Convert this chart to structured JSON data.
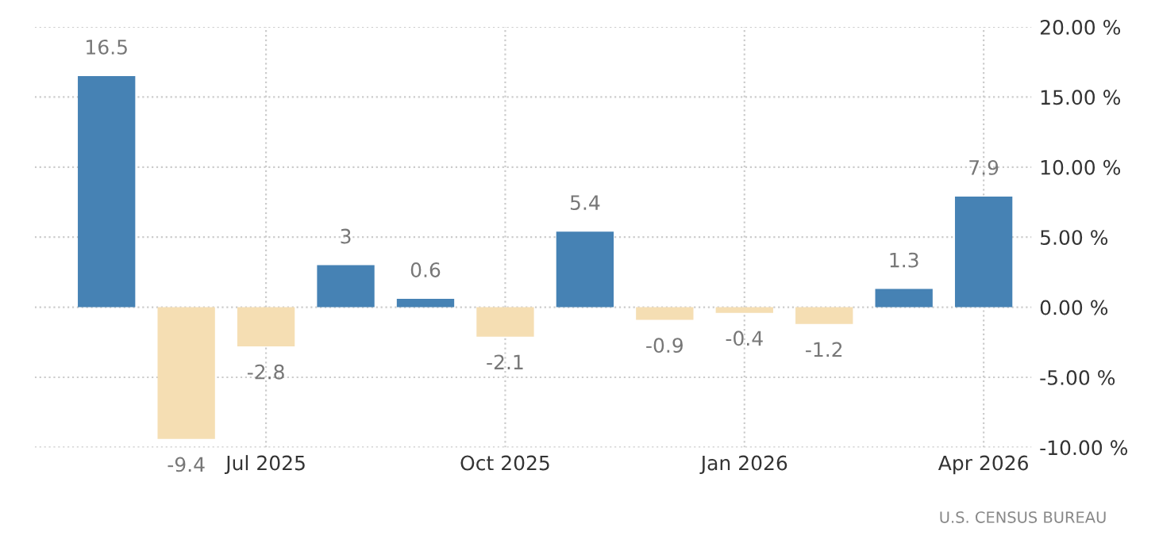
{
  "chart_data": {
    "type": "bar",
    "categories": [
      null,
      null,
      "Jul 2025",
      null,
      null,
      "Oct 2025",
      null,
      null,
      "Jan 2026",
      null,
      null,
      "Apr 2026"
    ],
    "values": [
      16.5,
      -9.4,
      -2.8,
      3,
      0.6,
      -2.1,
      5.4,
      -0.9,
      -0.4,
      -1.2,
      1.3,
      7.9
    ],
    "colors": [
      "#4682b4",
      "#f5deb3",
      "#f5deb3",
      "#4682b4",
      "#4682b4",
      "#f5deb3",
      "#4682b4",
      "#f5deb3",
      "#f5deb3",
      "#f5deb3",
      "#4682b4",
      "#4682b4"
    ],
    "data_labels": true,
    "ylim": [
      -10,
      20
    ],
    "yticks": [
      {
        "value": -10,
        "label": "-10.00 %"
      },
      {
        "value": -5,
        "label": "-5.00 %"
      },
      {
        "value": 0,
        "label": "0.00 %"
      },
      {
        "value": 5,
        "label": "5.00 %"
      },
      {
        "value": 10,
        "label": "10.00 %"
      },
      {
        "value": 15,
        "label": "15.00 %"
      },
      {
        "value": 20,
        "label": "20.00 %"
      }
    ],
    "grid": true,
    "annotations": [
      "U.S. CENSUS BUREAU"
    ]
  }
}
